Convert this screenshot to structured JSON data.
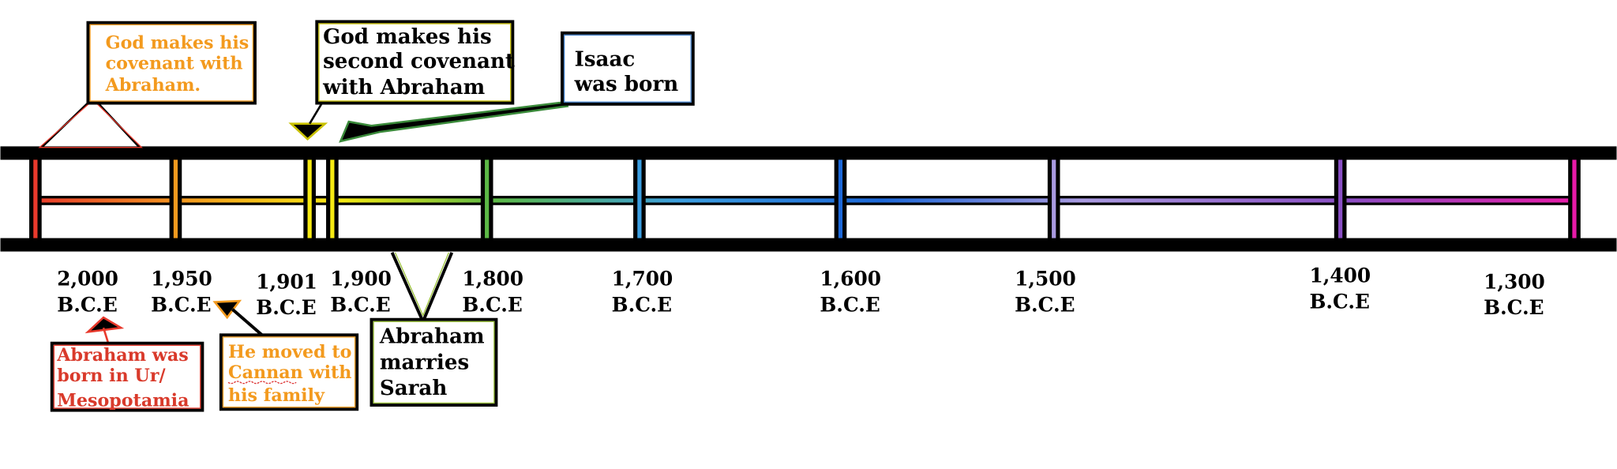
{
  "timeline": {
    "ticks": [
      {
        "year": "2,000",
        "era": "B.C.E"
      },
      {
        "year": "1,950",
        "era": "B.C.E"
      },
      {
        "year": "1,901",
        "era": "B.C.E"
      },
      {
        "year": "1,900",
        "era": "B.C.E"
      },
      {
        "year": "1,800",
        "era": "B.C.E"
      },
      {
        "year": "1,700",
        "era": "B.C.E"
      },
      {
        "year": "1,600",
        "era": "B.C.E"
      },
      {
        "year": "1,500",
        "era": "B.C.E"
      },
      {
        "year": "1,400",
        "era": "B.C.E"
      },
      {
        "year": "1,300",
        "era": "B.C.E"
      }
    ],
    "events": [
      {
        "lines": [
          "God makes his",
          "covenant with",
          "Abraham."
        ]
      },
      {
        "lines": [
          "God makes his",
          "second covenant",
          "with Abraham"
        ]
      },
      {
        "lines": [
          "Isaac",
          "was born"
        ]
      },
      {
        "lines": [
          "Abraham was",
          "born in Ur/",
          "Mesopotamia"
        ]
      },
      {
        "lines": [
          "He moved to",
          "Cannan with",
          "his family"
        ]
      },
      {
        "lines": [
          "Abraham",
          "marries",
          "Sarah"
        ]
      }
    ]
  }
}
